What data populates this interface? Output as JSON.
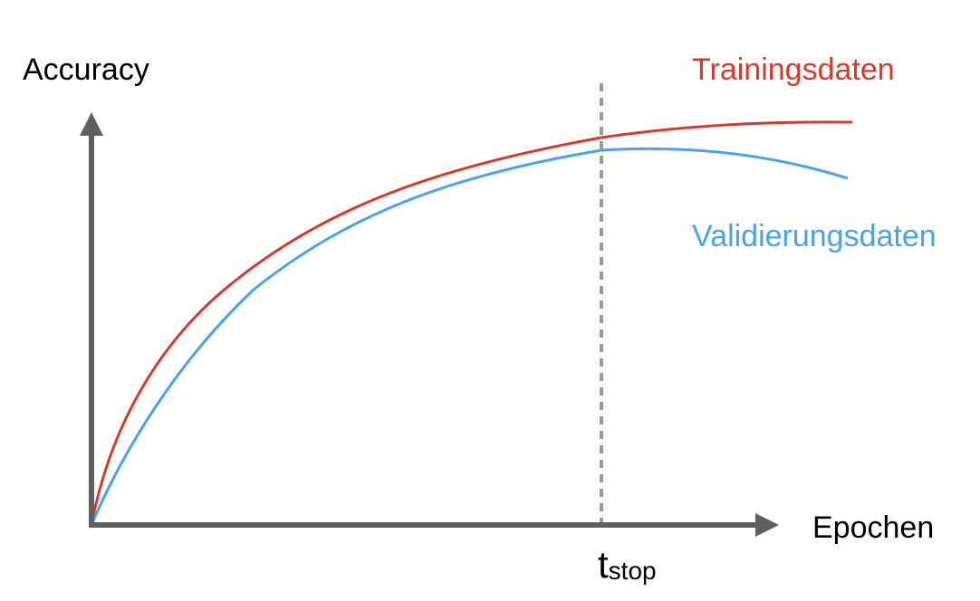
{
  "diagram": {
    "axis_labels": {
      "y": "Accuracy",
      "x": "Epochen"
    },
    "marker": {
      "label": "t",
      "subscript": "stop"
    },
    "series": [
      {
        "name": "Trainingsdaten",
        "color": "#d63a2b",
        "trend": "rises and plateaus"
      },
      {
        "name": "Validierungsdaten",
        "color": "#4aa3e8",
        "trend": "rises, peaks near t_stop, then declines"
      }
    ],
    "colors": {
      "axis": "#5f5f5f",
      "marker_line": "#9a9a9a",
      "text": "#000000"
    }
  }
}
